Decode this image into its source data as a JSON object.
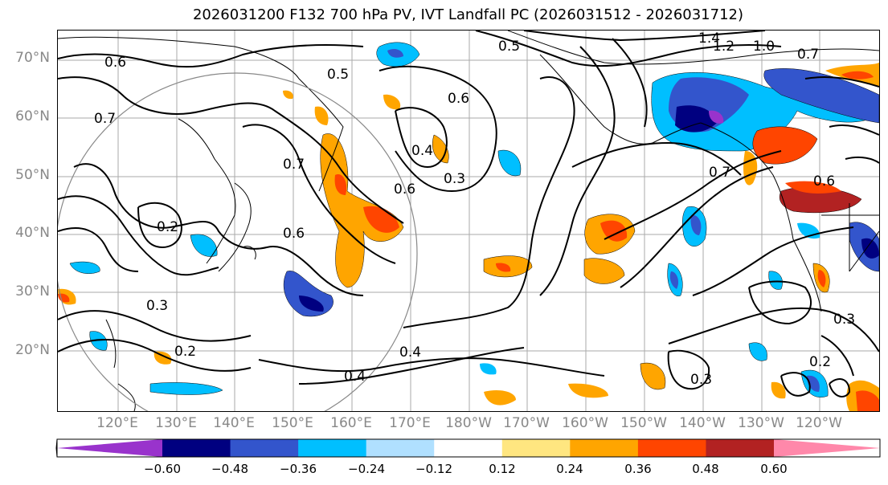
{
  "title": "2026031200 F132 700 hPa PV, IVT Landfall PC (2026031512 - 2026031712)",
  "lat_labels": [
    "70°N",
    "60°N",
    "50°N",
    "40°N",
    "30°N",
    "20°N"
  ],
  "lon_labels": [
    "120°E",
    "130°E",
    "140°E",
    "150°E",
    "160°E",
    "170°E",
    "180°W",
    "170°W",
    "160°W",
    "150°W",
    "140°W",
    "130°W",
    "120°W"
  ],
  "contour_labels": [
    "0.6",
    "0.5",
    "0.7",
    "0.7",
    "0.6",
    "0.5",
    "0.6",
    "0.4",
    "0.3",
    "0.6",
    "1.4",
    "1.2",
    "1.0",
    "0.7",
    "0.7",
    "0.6",
    "0.4",
    "0.3",
    "0.2",
    "0.3",
    "0.2",
    "0.3",
    "0.4",
    "0.2"
  ],
  "colorbar": {
    "colors": [
      "#9933cc",
      "#000080",
      "#3355cc",
      "#00bfff",
      "#b0e0ff",
      "#ffffff",
      "#ffe680",
      "#ffa500",
      "#ff4500",
      "#b22222",
      "#ff88aa"
    ],
    "tick_labels": [
      "−0.60",
      "−0.48",
      "−0.36",
      "−0.24",
      "−0.12",
      "0.12",
      "0.24",
      "0.36",
      "0.48",
      "0.60"
    ]
  }
}
